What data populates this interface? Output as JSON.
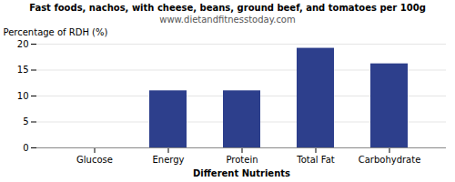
{
  "chart_data": {
    "type": "bar",
    "title": "Fast foods, nachos, with cheese, beans, ground beef, and tomatoes per 100g",
    "subtitle": "www.dietandfitnesstoday.com",
    "xlabel": "Different Nutrients",
    "ylabel": "Percentage of RDH (%)",
    "categories": [
      "Glucose",
      "Energy",
      "Protein",
      "Total Fat",
      "Carbohydrate"
    ],
    "values": [
      0,
      11,
      11,
      19.2,
      16.2
    ],
    "color": "#2d3f8c",
    "ylim": [
      0,
      20
    ],
    "yticks": [
      0,
      5,
      10,
      15,
      20
    ],
    "grid": true
  }
}
